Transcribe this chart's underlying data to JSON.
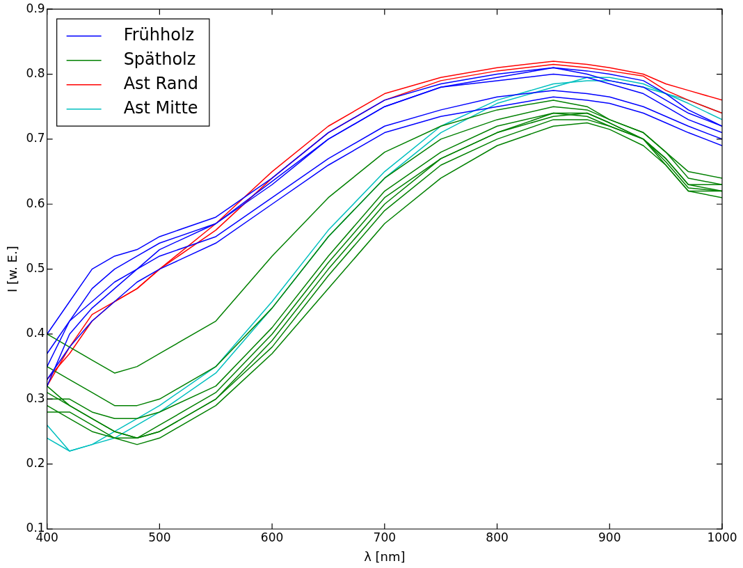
{
  "chart_data": {
    "type": "line",
    "xlabel": "λ [nm]",
    "ylabel": "I [w. E.]",
    "x": [
      400,
      420,
      440,
      460,
      480,
      500,
      550,
      600,
      650,
      700,
      750,
      800,
      850,
      880,
      900,
      930,
      950,
      970,
      1000
    ],
    "xlim": [
      400,
      1000
    ],
    "xticks": [
      400,
      500,
      600,
      700,
      800,
      900,
      1000
    ],
    "ylim": [
      0.1,
      0.9
    ],
    "yticks": [
      0.1,
      0.2,
      0.3,
      0.4,
      0.5,
      0.6,
      0.7,
      0.8,
      0.9
    ],
    "grid": false,
    "legend": "top left",
    "marker": "none",
    "line_style": "solid",
    "series": [
      {
        "name": "Frühholz",
        "color": "#0000ff",
        "values": [
          0.4,
          0.45,
          0.5,
          0.52,
          0.53,
          0.55,
          0.58,
          0.64,
          0.71,
          0.76,
          0.785,
          0.8,
          0.81,
          0.8,
          0.79,
          0.78,
          0.76,
          0.74,
          0.72
        ]
      },
      {
        "color": "#0000ff",
        "values": [
          0.35,
          0.42,
          0.47,
          0.5,
          0.52,
          0.54,
          0.57,
          0.63,
          0.7,
          0.75,
          0.78,
          0.79,
          0.8,
          0.795,
          0.785,
          0.77,
          0.75,
          0.73,
          0.71
        ]
      },
      {
        "color": "#0000ff",
        "values": [
          0.32,
          0.4,
          0.44,
          0.47,
          0.5,
          0.52,
          0.55,
          0.61,
          0.67,
          0.72,
          0.745,
          0.765,
          0.775,
          0.77,
          0.765,
          0.75,
          0.735,
          0.72,
          0.7
        ]
      },
      {
        "color": "#0000ff",
        "values": [
          0.33,
          0.38,
          0.42,
          0.45,
          0.48,
          0.5,
          0.54,
          0.6,
          0.66,
          0.71,
          0.735,
          0.75,
          0.765,
          0.76,
          0.755,
          0.74,
          0.725,
          0.71,
          0.69
        ]
      },
      {
        "color": "#0000ff",
        "values": [
          0.37,
          0.42,
          0.45,
          0.48,
          0.5,
          0.53,
          0.57,
          0.635,
          0.7,
          0.75,
          0.78,
          0.795,
          0.81,
          0.805,
          0.8,
          0.79,
          0.77,
          0.745,
          0.72
        ]
      },
      {
        "name": "Spätholz",
        "color": "#008000",
        "values": [
          0.4,
          0.38,
          0.36,
          0.34,
          0.35,
          0.37,
          0.42,
          0.52,
          0.61,
          0.68,
          0.72,
          0.745,
          0.76,
          0.75,
          0.73,
          0.71,
          0.68,
          0.65,
          0.64
        ]
      },
      {
        "color": "#008000",
        "values": [
          0.35,
          0.33,
          0.31,
          0.29,
          0.29,
          0.3,
          0.35,
          0.44,
          0.55,
          0.64,
          0.7,
          0.73,
          0.75,
          0.745,
          0.73,
          0.71,
          0.68,
          0.64,
          0.63
        ]
      },
      {
        "color": "#008000",
        "values": [
          0.3,
          0.3,
          0.28,
          0.27,
          0.27,
          0.28,
          0.32,
          0.41,
          0.52,
          0.62,
          0.68,
          0.72,
          0.74,
          0.735,
          0.72,
          0.7,
          0.67,
          0.63,
          0.62
        ]
      },
      {
        "color": "#008000",
        "values": [
          0.32,
          0.29,
          0.27,
          0.25,
          0.24,
          0.25,
          0.3,
          0.38,
          0.49,
          0.59,
          0.66,
          0.7,
          0.73,
          0.73,
          0.72,
          0.7,
          0.66,
          0.62,
          0.61
        ]
      },
      {
        "color": "#008000",
        "values": [
          0.28,
          0.28,
          0.26,
          0.24,
          0.23,
          0.24,
          0.29,
          0.37,
          0.47,
          0.57,
          0.64,
          0.69,
          0.72,
          0.725,
          0.715,
          0.69,
          0.66,
          0.62,
          0.62
        ]
      },
      {
        "color": "#008000",
        "values": [
          0.31,
          0.29,
          0.27,
          0.25,
          0.24,
          0.25,
          0.3,
          0.39,
          0.5,
          0.6,
          0.67,
          0.71,
          0.74,
          0.74,
          0.725,
          0.7,
          0.67,
          0.63,
          0.63
        ]
      },
      {
        "color": "#008000",
        "values": [
          0.29,
          0.27,
          0.25,
          0.24,
          0.24,
          0.26,
          0.31,
          0.4,
          0.51,
          0.61,
          0.67,
          0.71,
          0.735,
          0.74,
          0.725,
          0.7,
          0.665,
          0.625,
          0.62
        ]
      },
      {
        "name": "Ast Rand",
        "color": "#ff0000",
        "values": [
          0.32,
          0.38,
          0.43,
          0.45,
          0.47,
          0.5,
          0.57,
          0.65,
          0.72,
          0.77,
          0.795,
          0.81,
          0.82,
          0.815,
          0.81,
          0.8,
          0.785,
          0.775,
          0.76
        ]
      },
      {
        "color": "#ff0000",
        "values": [
          0.33,
          0.37,
          0.42,
          0.45,
          0.47,
          0.5,
          0.56,
          0.64,
          0.71,
          0.76,
          0.79,
          0.805,
          0.815,
          0.81,
          0.805,
          0.797,
          0.775,
          0.76,
          0.74
        ]
      },
      {
        "name": "Ast Mitte",
        "color": "#00bfbf",
        "values": [
          0.26,
          0.22,
          0.23,
          0.25,
          0.27,
          0.29,
          0.35,
          0.45,
          0.56,
          0.65,
          0.72,
          0.76,
          0.785,
          0.79,
          0.79,
          0.78,
          0.77,
          0.76,
          0.74
        ]
      },
      {
        "color": "#00bfbf",
        "values": [
          0.24,
          0.22,
          0.23,
          0.24,
          0.26,
          0.28,
          0.34,
          0.44,
          0.55,
          0.64,
          0.71,
          0.755,
          0.78,
          0.795,
          0.795,
          0.785,
          0.77,
          0.755,
          0.73
        ]
      }
    ]
  }
}
